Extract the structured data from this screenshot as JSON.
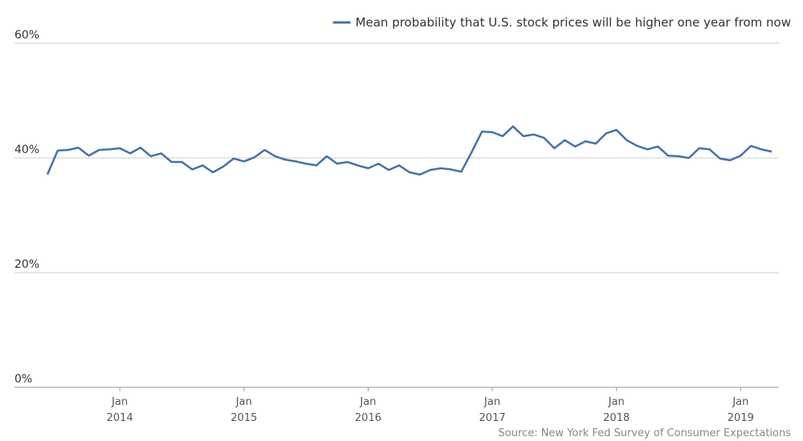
{
  "chart_data": {
    "type": "line",
    "legend_position": "top-right",
    "source": "Source: New York Fed Survey of Consumer Expectations",
    "x": [
      "2013-06",
      "2013-07",
      "2013-08",
      "2013-09",
      "2013-10",
      "2013-11",
      "2013-12",
      "2014-01",
      "2014-02",
      "2014-03",
      "2014-04",
      "2014-05",
      "2014-06",
      "2014-07",
      "2014-08",
      "2014-09",
      "2014-10",
      "2014-11",
      "2014-12",
      "2015-01",
      "2015-02",
      "2015-03",
      "2015-04",
      "2015-05",
      "2015-06",
      "2015-07",
      "2015-08",
      "2015-09",
      "2015-10",
      "2015-11",
      "2015-12",
      "2016-01",
      "2016-02",
      "2016-03",
      "2016-04",
      "2016-05",
      "2016-06",
      "2016-07",
      "2016-08",
      "2016-09",
      "2016-10",
      "2016-11",
      "2016-12",
      "2017-01",
      "2017-02",
      "2017-03",
      "2017-04",
      "2017-05",
      "2017-06",
      "2017-07",
      "2017-08",
      "2017-09",
      "2017-10",
      "2017-11",
      "2017-12",
      "2018-01",
      "2018-02",
      "2018-03",
      "2018-04",
      "2018-05",
      "2018-06",
      "2018-07",
      "2018-08",
      "2018-09",
      "2018-10",
      "2018-11",
      "2018-12",
      "2019-01",
      "2019-02",
      "2019-03",
      "2019-04"
    ],
    "series": [
      {
        "name": "Mean probability that U.S. stock prices will be higher one year from now",
        "color": "#4572a7",
        "values": [
          37.1,
          41.3,
          41.4,
          41.8,
          40.4,
          41.4,
          41.5,
          41.7,
          40.8,
          41.8,
          40.3,
          40.8,
          39.3,
          39.3,
          38.0,
          38.7,
          37.5,
          38.5,
          39.9,
          39.4,
          40.1,
          41.4,
          40.3,
          39.7,
          39.4,
          39.0,
          38.7,
          40.3,
          39.0,
          39.3,
          38.7,
          38.2,
          39.0,
          37.9,
          38.7,
          37.5,
          37.1,
          37.9,
          38.2,
          38.0,
          37.6,
          41.0,
          44.6,
          44.5,
          43.8,
          45.5,
          43.8,
          44.1,
          43.5,
          41.7,
          43.1,
          42.0,
          42.9,
          42.5,
          44.3,
          44.9,
          43.1,
          42.1,
          41.5,
          42.0,
          40.4,
          40.3,
          40.0,
          41.7,
          41.5,
          39.9,
          39.6,
          40.4,
          42.1,
          41.5,
          41.1
        ]
      }
    ],
    "xlim": [
      "2013-06",
      "2019-04"
    ],
    "xticks": [
      {
        "value": "2014-01",
        "label": "Jan",
        "sublabel": "2014"
      },
      {
        "value": "2015-01",
        "label": "Jan",
        "sublabel": "2015"
      },
      {
        "value": "2016-01",
        "label": "Jan",
        "sublabel": "2016"
      },
      {
        "value": "2017-01",
        "label": "Jan",
        "sublabel": "2017"
      },
      {
        "value": "2018-01",
        "label": "Jan",
        "sublabel": "2018"
      },
      {
        "value": "2019-01",
        "label": "Jan",
        "sublabel": "2019"
      }
    ],
    "ylim": [
      0,
      60
    ],
    "yticks": [
      {
        "value": 0,
        "label": "0%"
      },
      {
        "value": 20,
        "label": "20%"
      },
      {
        "value": 40,
        "label": "40%"
      },
      {
        "value": 60,
        "label": "60%"
      }
    ],
    "grid": true
  }
}
